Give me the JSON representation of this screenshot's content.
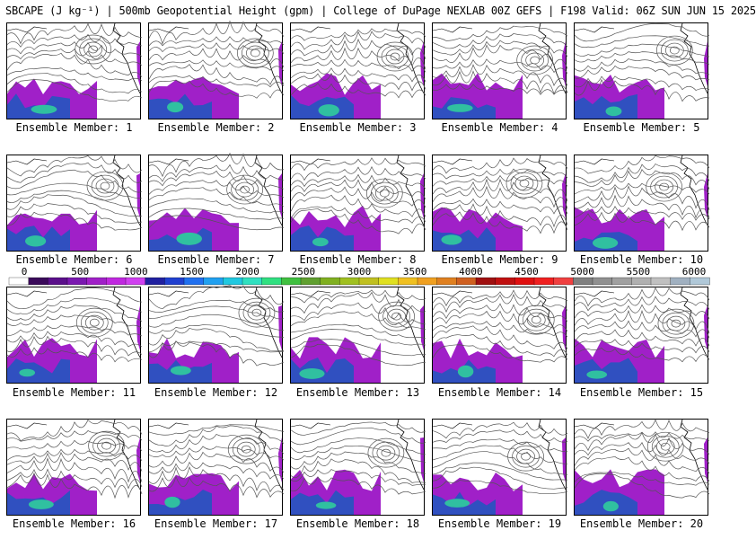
{
  "title": "SBCAPE (J kg⁻¹) | 500mb Geopotential Height (gpm) | College of DuPage NEXLAB 00Z GEFS | F198 Valid: 06Z SUN JUN 15 2025",
  "members": [
    {
      "label": "Ensemble Member: 1"
    },
    {
      "label": "Ensemble Member: 2"
    },
    {
      "label": "Ensemble Member: 3"
    },
    {
      "label": "Ensemble Member: 4"
    },
    {
      "label": "Ensemble Member: 5"
    },
    {
      "label": "Ensemble Member: 6"
    },
    {
      "label": "Ensemble Member: 7"
    },
    {
      "label": "Ensemble Member: 8"
    },
    {
      "label": "Ensemble Member: 9"
    },
    {
      "label": "Ensemble Member: 10"
    },
    {
      "label": "Ensemble Member: 11"
    },
    {
      "label": "Ensemble Member: 12"
    },
    {
      "label": "Ensemble Member: 13"
    },
    {
      "label": "Ensemble Member: 14"
    },
    {
      "label": "Ensemble Member: 15"
    },
    {
      "label": "Ensemble Member: 16"
    },
    {
      "label": "Ensemble Member: 17"
    },
    {
      "label": "Ensemble Member: 18"
    },
    {
      "label": "Ensemble Member: 19"
    },
    {
      "label": "Ensemble Member: 20"
    }
  ],
  "colorbar": {
    "ticks": [
      "0",
      "500",
      "1000",
      "1500",
      "2000",
      "2500",
      "3000",
      "3500",
      "4000",
      "4500",
      "5000",
      "5500",
      "6000"
    ],
    "colors": [
      "#ffffff",
      "#3a0a5a",
      "#5a0f8a",
      "#7a18b0",
      "#a020c8",
      "#c028e0",
      "#d040f0",
      "#2020a0",
      "#2040d0",
      "#2070f0",
      "#20a0f0",
      "#20c8e0",
      "#30e0c0",
      "#30e080",
      "#40c040",
      "#60a030",
      "#80b020",
      "#a0c020",
      "#c0c020",
      "#e0e020",
      "#f0c020",
      "#f0a020",
      "#e08020",
      "#d06020",
      "#a01010",
      "#c01010",
      "#e01010",
      "#f02020",
      "#f04040",
      "#808080",
      "#909090",
      "#a0a0a0",
      "#b0b0b0",
      "#c0c0c0",
      "#a0b0c0",
      "#b0c8d8"
    ]
  }
}
